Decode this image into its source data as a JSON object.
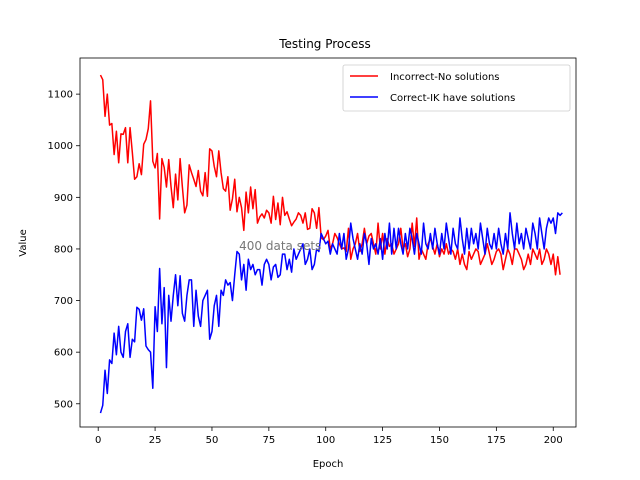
{
  "chart_data": {
    "type": "line",
    "title": "Testing Process",
    "xlabel": "Epoch",
    "ylabel": "Value",
    "xlim": [
      -8,
      210
    ],
    "ylim": [
      455,
      1170
    ],
    "xticks": [
      0,
      25,
      50,
      75,
      100,
      125,
      150,
      175,
      200
    ],
    "yticks": [
      500,
      600,
      700,
      800,
      900,
      1000,
      1100
    ],
    "grid": false,
    "legend": "top-right",
    "annotation": {
      "text": "400 data sets",
      "x": 80,
      "y": 806
    },
    "series": [
      {
        "name": "Incorrect-No solutions",
        "color": "#ff0000",
        "values": [
          1137,
          1128,
          1057,
          1100,
          1040,
          1043,
          983,
          1028,
          967,
          1023,
          1022,
          1035,
          967,
          1035,
          987,
          935,
          940,
          965,
          944,
          1003,
          1012,
          1033,
          1087,
          970,
          957,
          985,
          858,
          975,
          958,
          920,
          973,
          921,
          880,
          945,
          895,
          975,
          920,
          870,
          885,
          963,
          948,
          935,
          921,
          952,
          912,
          903,
          948,
          902,
          994,
          990,
          960,
          940,
          990,
          948,
          917,
          912,
          940,
          875,
          897,
          935,
          872,
          900,
          880,
          836,
          910,
          870,
          920,
          878,
          915,
          850,
          862,
          868,
          860,
          875,
          870,
          850,
          902,
          857,
          889,
          847,
          900,
          865,
          872,
          858,
          845,
          852,
          858,
          870,
          865,
          850,
          870,
          838,
          840,
          878,
          870,
          840,
          880,
          822,
          818,
          825,
          836,
          800,
          810,
          830,
          822,
          810,
          800,
          802,
          795,
          840,
          780,
          800,
          810,
          830,
          795,
          810,
          840,
          810,
          825,
          830,
          810,
          790,
          850,
          800,
          830,
          790,
          820,
          805,
          810,
          790,
          800,
          810,
          840,
          800,
          810,
          785,
          800,
          850,
          805,
          860,
          780,
          800,
          790,
          780,
          810,
          820,
          805,
          790,
          810,
          785,
          800,
          790,
          810,
          790,
          800,
          795,
          780,
          800,
          770,
          790,
          770,
          760,
          795,
          780,
          790,
          800,
          795,
          770,
          780,
          790,
          810,
          790,
          770,
          780,
          795,
          800,
          790,
          760,
          780,
          800,
          790,
          770,
          800,
          800,
          790,
          780,
          760,
          770,
          790,
          770,
          800,
          790,
          780,
          800,
          770,
          780,
          800,
          790,
          770,
          790,
          750,
          785,
          750
        ]
      },
      {
        "name": "Correct-IK have solutions",
        "color": "#0000ff",
        "values": [
          482,
          497,
          565,
          520,
          585,
          578,
          637,
          595,
          650,
          600,
          590,
          640,
          655,
          590,
          625,
          620,
          687,
          683,
          662,
          684,
          612,
          605,
          600,
          530,
          688,
          640,
          762,
          655,
          725,
          570,
          710,
          660,
          710,
          750,
          690,
          748,
          675,
          660,
          710,
          740,
          740,
          650,
          720,
          670,
          650,
          700,
          710,
          720,
          625,
          640,
          690,
          710,
          650,
          720,
          710,
          740,
          730,
          735,
          700,
          750,
          795,
          790,
          740,
          770,
          720,
          780,
          760,
          770,
          750,
          760,
          760,
          730,
          770,
          780,
          770,
          740,
          765,
          770,
          745,
          750,
          790,
          790,
          760,
          780,
          755,
          800,
          780,
          790,
          800,
          810,
          770,
          780,
          800,
          760,
          770,
          800,
          795,
          830,
          820,
          810,
          815,
          790,
          810,
          800,
          790,
          830,
          800,
          830,
          780,
          800,
          850,
          820,
          800,
          780,
          810,
          790,
          830,
          810,
          770,
          820,
          800,
          810,
          790,
          820,
          780,
          830,
          800,
          850,
          790,
          840,
          800,
          840,
          810,
          790,
          830,
          800,
          840,
          820,
          790,
          830,
          810,
          790,
          850,
          810,
          800,
          830,
          800,
          840,
          810,
          790,
          830,
          800,
          850,
          820,
          790,
          840,
          810,
          800,
          860,
          820,
          790,
          840,
          800,
          840,
          810,
          830,
          800,
          850,
          820,
          790,
          840,
          810,
          800,
          830,
          800,
          840,
          810,
          790,
          830,
          800,
          870,
          830,
          800,
          850,
          810,
          830,
          800,
          840,
          820,
          800,
          850,
          830,
          800,
          860,
          830,
          800,
          840,
          860,
          850,
          860,
          830,
          870,
          865,
          870
        ]
      }
    ]
  }
}
